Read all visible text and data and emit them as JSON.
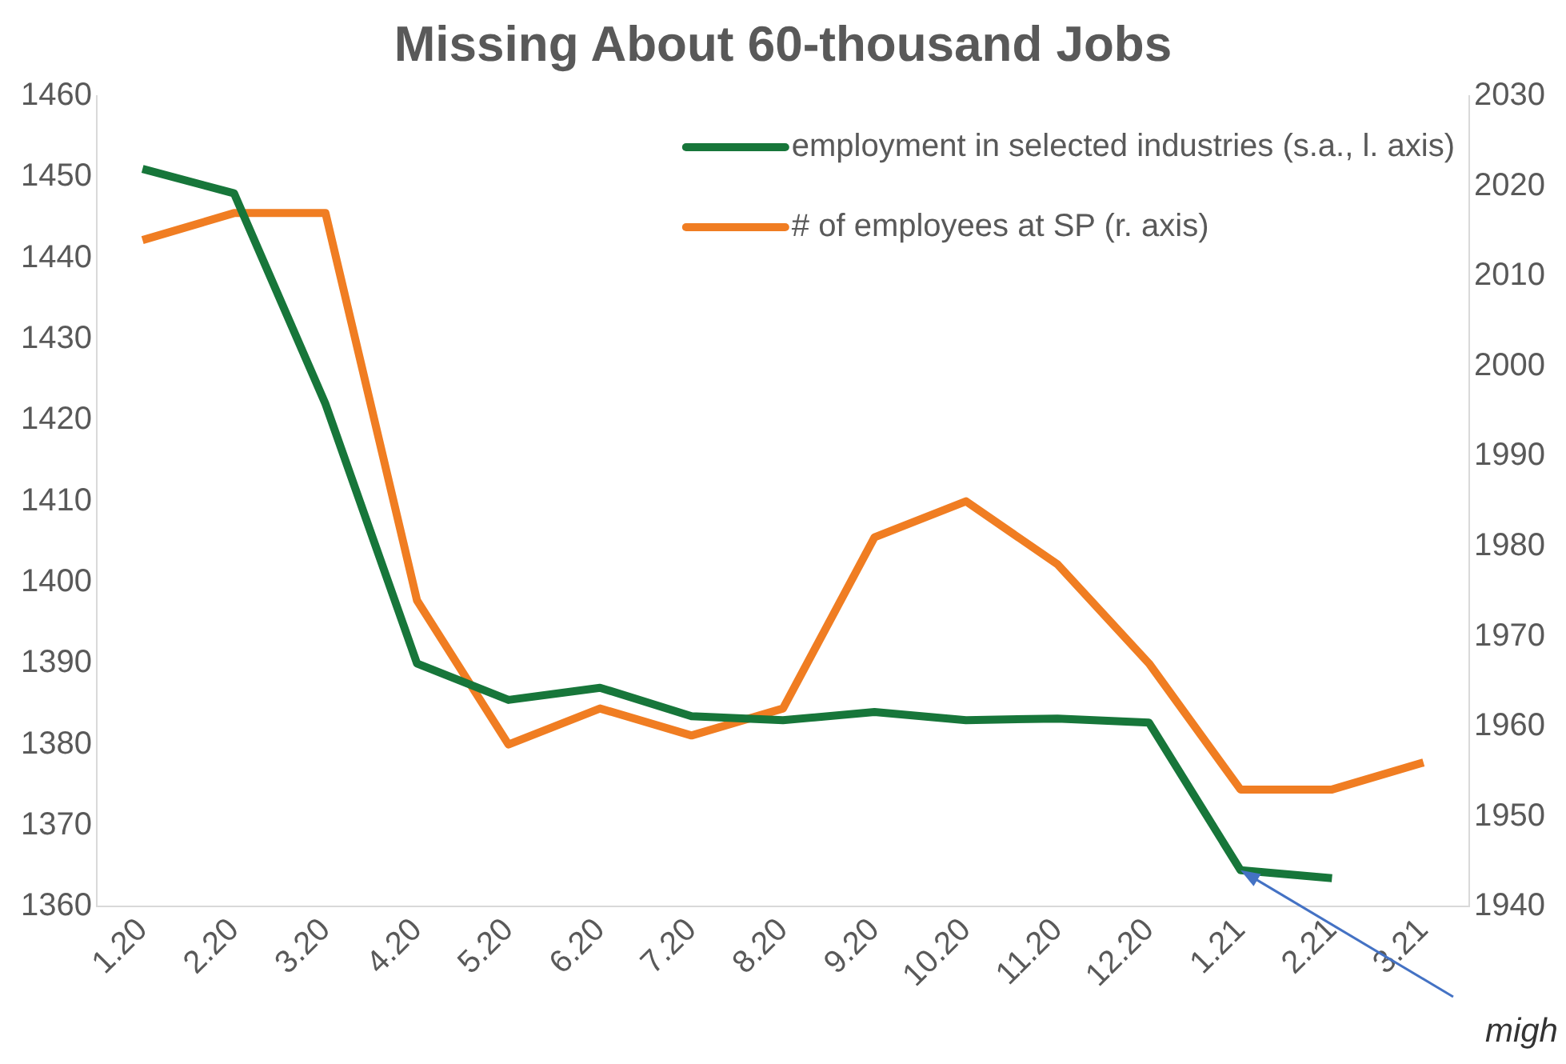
{
  "chart_data": {
    "type": "line",
    "title": "Missing About 60-thousand Jobs",
    "categories": [
      "1.20",
      "2.20",
      "3.20",
      "4.20",
      "5.20",
      "6.20",
      "7.20",
      "8.20",
      "9.20",
      "10.20",
      "11.20",
      "12.20",
      "1.21",
      "2.21",
      "3.21"
    ],
    "series": [
      {
        "name": "employment in selected industries (s.a., l. axis)",
        "color": "#17763a",
        "values": [
          1451,
          1448,
          1422,
          1390,
          1385.5,
          1387,
          1383.5,
          1383,
          1384,
          1383,
          1383.2,
          1382.7,
          1364.5,
          1363.5,
          null
        ]
      },
      {
        "name": "# of employees at SP (r. axis)",
        "color": "#f07d22",
        "axis": "y2",
        "values": [
          2014,
          2017,
          2017,
          1974,
          1958,
          1962,
          1959,
          1962,
          1981,
          1985,
          1978,
          1967,
          1953,
          1953,
          1956
        ]
      }
    ],
    "ylim": [
      1360,
      1460
    ],
    "yticks": [
      1360,
      1370,
      1380,
      1390,
      1400,
      1410,
      1420,
      1430,
      1440,
      1450,
      1460
    ],
    "y2lim": [
      1940,
      2030
    ],
    "y2ticks": [
      1940,
      1950,
      1960,
      1970,
      1980,
      1990,
      2000,
      2010,
      2020,
      2030
    ],
    "grid": false,
    "legend": "top right",
    "marker": "none",
    "line_style": "solid",
    "annotations": [
      {
        "text": "migh",
        "x": "1.21",
        "y": 1364.5
      }
    ]
  }
}
